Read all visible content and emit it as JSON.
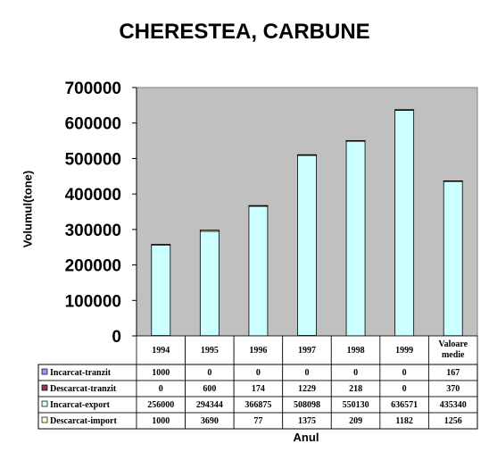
{
  "chart_data": {
    "type": "bar",
    "title": "CHERESTEA, CARBUNE",
    "xlabel": "Anul",
    "ylabel": "Volumul(tone)",
    "ylim": [
      0,
      700000
    ],
    "yticks": [
      "700000",
      "600000",
      "500000",
      "400000",
      "300000",
      "200000",
      "100000",
      "0"
    ],
    "categories": [
      "1994",
      "1995",
      "1996",
      "1997",
      "1998",
      "1999",
      "Valoare medie"
    ],
    "stacked": true,
    "grid": false,
    "legend": "left-table",
    "series": [
      {
        "name": "Incarcat-tranzit",
        "color": "#9999ff",
        "values": [
          1000,
          0,
          0,
          0,
          0,
          0,
          167
        ],
        "labels": [
          "1000",
          "0",
          "0",
          "0",
          "0",
          "0",
          "167"
        ]
      },
      {
        "name": "Descarcat-tranzit",
        "color": "#993366",
        "values": [
          0,
          600,
          174,
          1229,
          218,
          0,
          370
        ],
        "labels": [
          "0",
          "600",
          "174",
          "1229",
          "218",
          "0",
          "370"
        ]
      },
      {
        "name": "Incarcat-export",
        "color": "#ccffff",
        "values": [
          256000,
          294344,
          366875,
          508098,
          550130,
          636571,
          435340
        ],
        "labels": [
          "256000",
          "294344",
          "366875",
          "508098",
          "550130",
          "636571",
          "435340"
        ]
      },
      {
        "name": "Descarcat-import",
        "color": "#ffffcc",
        "values": [
          1000,
          3690,
          77,
          1375,
          209,
          1182,
          1256
        ],
        "labels": [
          "1000",
          "3690",
          "77",
          "1375",
          "209",
          "1182",
          "1256"
        ]
      }
    ],
    "plot_background": "#c0c0c0"
  }
}
